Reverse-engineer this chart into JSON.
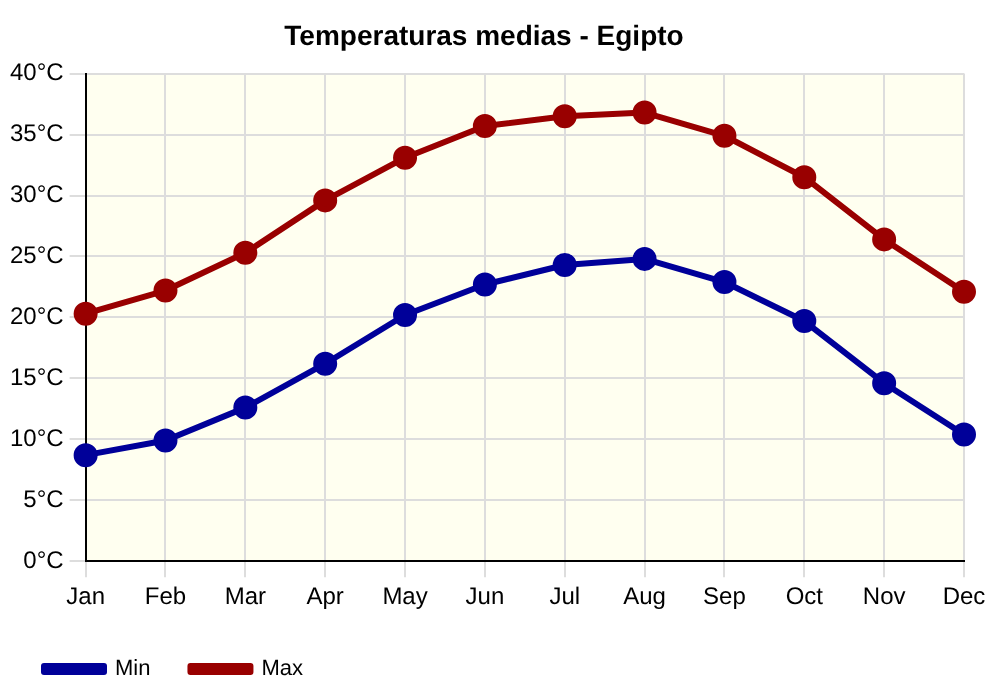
{
  "chart_data": {
    "type": "line",
    "title": "Temperaturas medias - Egipto",
    "categories": [
      "Jan",
      "Feb",
      "Mar",
      "Apr",
      "May",
      "Jun",
      "Jul",
      "Aug",
      "Sep",
      "Oct",
      "Nov",
      "Dec"
    ],
    "series": [
      {
        "name": "Min",
        "color": "#000099",
        "values": [
          8.7,
          9.9,
          12.6,
          16.2,
          20.2,
          22.7,
          24.3,
          24.8,
          22.9,
          19.7,
          14.6,
          10.4
        ]
      },
      {
        "name": "Max",
        "color": "#990000",
        "values": [
          20.3,
          22.2,
          25.3,
          29.6,
          33.1,
          35.7,
          36.5,
          36.8,
          34.9,
          31.5,
          26.4,
          22.1
        ]
      }
    ],
    "ylim": [
      0,
      40
    ],
    "yticks": [
      {
        "value": 0,
        "label": "0°C"
      },
      {
        "value": 5,
        "label": "5°C"
      },
      {
        "value": 10,
        "label": "10°C"
      },
      {
        "value": 15,
        "label": "15°C"
      },
      {
        "value": 20,
        "label": "20°C"
      },
      {
        "value": 25,
        "label": "25°C"
      },
      {
        "value": 30,
        "label": "30°C"
      },
      {
        "value": 35,
        "label": "35°C"
      },
      {
        "value": 40,
        "label": "40°C"
      }
    ],
    "grid": true,
    "legend": "bottom left",
    "marker": "circle",
    "line_style": "solid"
  }
}
